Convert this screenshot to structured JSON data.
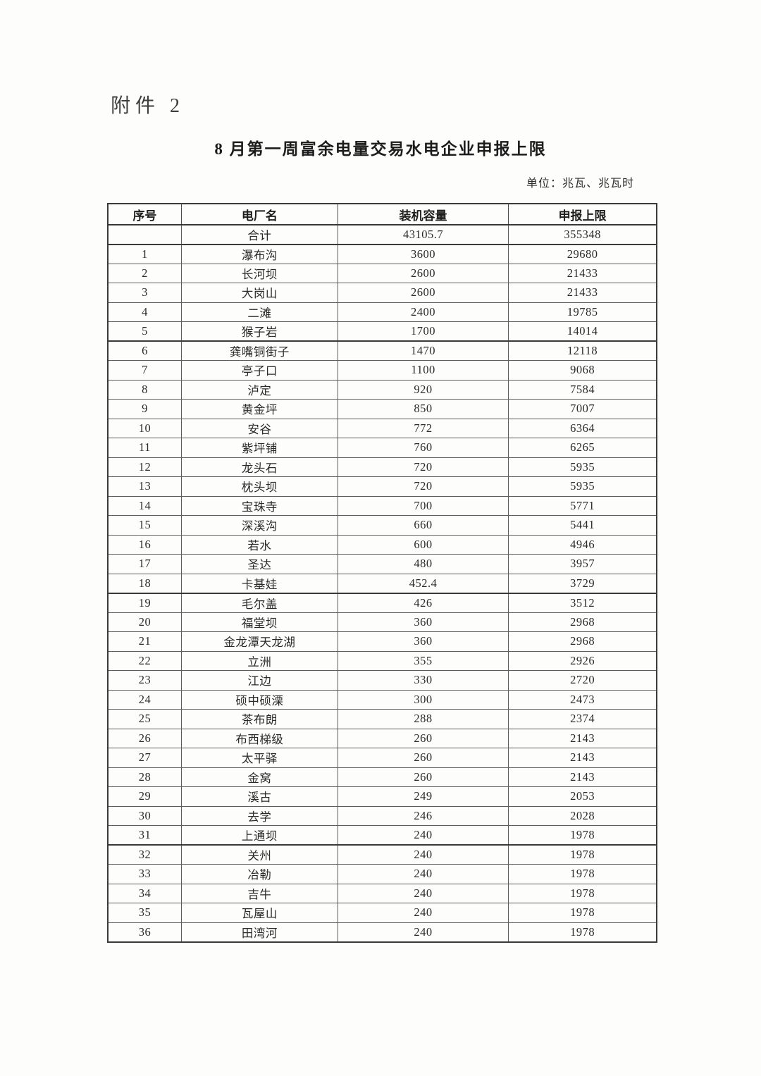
{
  "document": {
    "attachment_label": "附件 2",
    "title": "8 月第一周富余电量交易水电企业申报上限",
    "unit_note": "单位：兆瓦、兆瓦时"
  },
  "table": {
    "columns": [
      "序号",
      "电厂名",
      "装机容量",
      "申报上限"
    ],
    "rows": [
      {
        "seq": "",
        "name": "合计",
        "capacity": "43105.7",
        "limit": "355348"
      },
      {
        "seq": "1",
        "name": "瀑布沟",
        "capacity": "3600",
        "limit": "29680"
      },
      {
        "seq": "2",
        "name": "长河坝",
        "capacity": "2600",
        "limit": "21433"
      },
      {
        "seq": "3",
        "name": "大岗山",
        "capacity": "2600",
        "limit": "21433"
      },
      {
        "seq": "4",
        "name": "二滩",
        "capacity": "2400",
        "limit": "19785"
      },
      {
        "seq": "5",
        "name": "猴子岩",
        "capacity": "1700",
        "limit": "14014"
      },
      {
        "seq": "6",
        "name": "龚嘴铜街子",
        "capacity": "1470",
        "limit": "12118"
      },
      {
        "seq": "7",
        "name": "亭子口",
        "capacity": "1100",
        "limit": "9068"
      },
      {
        "seq": "8",
        "name": "泸定",
        "capacity": "920",
        "limit": "7584"
      },
      {
        "seq": "9",
        "name": "黄金坪",
        "capacity": "850",
        "limit": "7007"
      },
      {
        "seq": "10",
        "name": "安谷",
        "capacity": "772",
        "limit": "6364"
      },
      {
        "seq": "11",
        "name": "紫坪铺",
        "capacity": "760",
        "limit": "6265"
      },
      {
        "seq": "12",
        "name": "龙头石",
        "capacity": "720",
        "limit": "5935"
      },
      {
        "seq": "13",
        "name": "枕头坝",
        "capacity": "720",
        "limit": "5935"
      },
      {
        "seq": "14",
        "name": "宝珠寺",
        "capacity": "700",
        "limit": "5771"
      },
      {
        "seq": "15",
        "name": "深溪沟",
        "capacity": "660",
        "limit": "5441"
      },
      {
        "seq": "16",
        "name": "若水",
        "capacity": "600",
        "limit": "4946"
      },
      {
        "seq": "17",
        "name": "圣达",
        "capacity": "480",
        "limit": "3957"
      },
      {
        "seq": "18",
        "name": "卡基娃",
        "capacity": "452.4",
        "limit": "3729"
      },
      {
        "seq": "19",
        "name": "毛尔盖",
        "capacity": "426",
        "limit": "3512"
      },
      {
        "seq": "20",
        "name": "福堂坝",
        "capacity": "360",
        "limit": "2968"
      },
      {
        "seq": "21",
        "name": "金龙潭天龙湖",
        "capacity": "360",
        "limit": "2968"
      },
      {
        "seq": "22",
        "name": "立洲",
        "capacity": "355",
        "limit": "2926"
      },
      {
        "seq": "23",
        "name": "江边",
        "capacity": "330",
        "limit": "2720"
      },
      {
        "seq": "24",
        "name": "硕中硕溧",
        "capacity": "300",
        "limit": "2473"
      },
      {
        "seq": "25",
        "name": "茶布朗",
        "capacity": "288",
        "limit": "2374"
      },
      {
        "seq": "26",
        "name": "布西梯级",
        "capacity": "260",
        "limit": "2143"
      },
      {
        "seq": "27",
        "name": "太平驿",
        "capacity": "260",
        "limit": "2143"
      },
      {
        "seq": "28",
        "name": "金窝",
        "capacity": "260",
        "limit": "2143"
      },
      {
        "seq": "29",
        "name": "溪古",
        "capacity": "249",
        "limit": "2053"
      },
      {
        "seq": "30",
        "name": "去学",
        "capacity": "246",
        "limit": "2028"
      },
      {
        "seq": "31",
        "name": "上通坝",
        "capacity": "240",
        "limit": "1978"
      },
      {
        "seq": "32",
        "name": "关州",
        "capacity": "240",
        "limit": "1978"
      },
      {
        "seq": "33",
        "name": "冶勒",
        "capacity": "240",
        "limit": "1978"
      },
      {
        "seq": "34",
        "name": "吉牛",
        "capacity": "240",
        "limit": "1978"
      },
      {
        "seq": "35",
        "name": "瓦屋山",
        "capacity": "240",
        "limit": "1978"
      },
      {
        "seq": "36",
        "name": "田湾河",
        "capacity": "240",
        "limit": "1978"
      }
    ]
  }
}
